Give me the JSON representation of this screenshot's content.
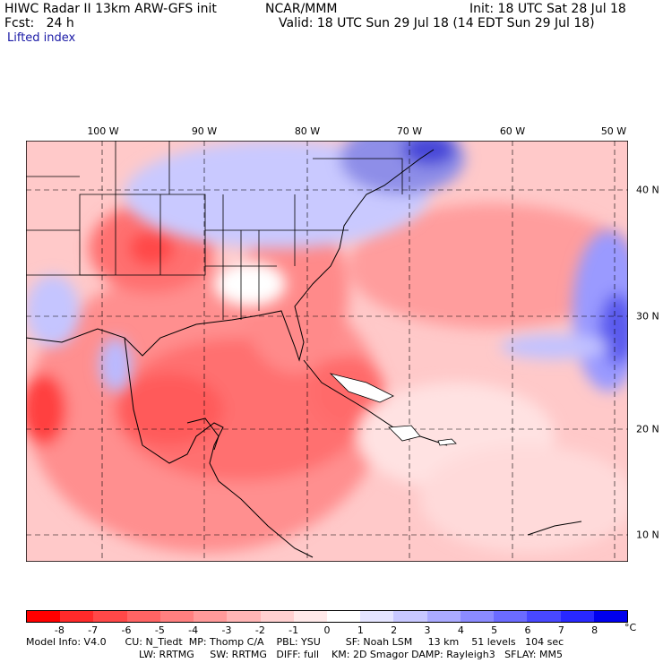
{
  "header": {
    "line1_left": "HIWC Radar II 13km ARW-GFS init",
    "line1_mid": "NCAR/MMM",
    "line1_right": "Init: 18 UTC Sat 28 Jul 18",
    "line2_left": "Fcst:   24 h",
    "line2_right": "Valid: 18 UTC Sun 29 Jul 18 (14 EDT Sun 29 Jul 18)",
    "field": "Lifted index"
  },
  "map": {
    "lon_labels": [
      "100 W",
      "90 W",
      "80 W",
      "70 W",
      "60 W",
      "50 W"
    ],
    "lat_labels": [
      "40 N",
      "30 N",
      "20 N",
      "10 N"
    ]
  },
  "colorbar": {
    "ticks": [
      "-8",
      "-7",
      "-6",
      "-5",
      "-4",
      "-3",
      "-2",
      "-1",
      "0",
      "1",
      "2",
      "3",
      "4",
      "5",
      "6",
      "7",
      "8"
    ],
    "unit": "°C",
    "colors": [
      "#ff0000",
      "#ff2a2a",
      "#ff4848",
      "#ff6464",
      "#ff8080",
      "#ff9a9a",
      "#ffb5b5",
      "#ffd0d0",
      "#ffe9e9",
      "#ffffff",
      "#e5e5ff",
      "#c8c8ff",
      "#aaaaff",
      "#8b8bff",
      "#6b6bff",
      "#4848ff",
      "#2828ff",
      "#0000ee"
    ]
  },
  "footer": {
    "line1": "Model Info: V4.0      CU: N_Tiedt  MP: Thomp C/A    PBL: YSU        SF: Noah LSM     13 km    51 levels   104 sec",
    "line2": "LW: RRTMG     SW: RRTMG   DIFF: full    KM: 2D Smagor DAMP: Rayleigh3   SFLAY: MM5"
  }
}
